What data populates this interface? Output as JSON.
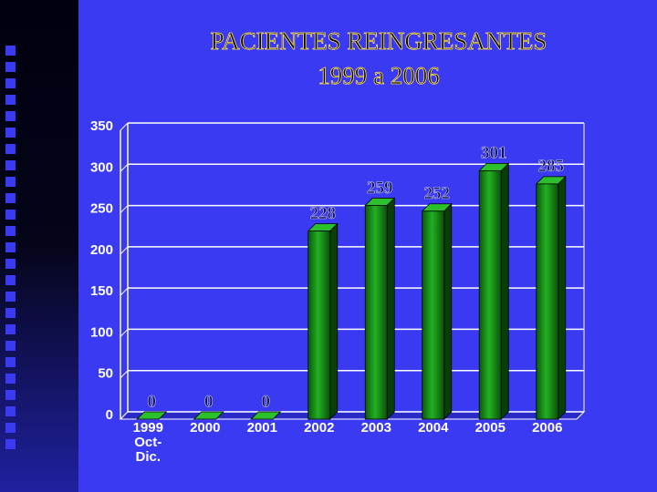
{
  "chart_data": {
    "type": "bar",
    "title": "PACIENTES REINGRESANTES",
    "subtitle": "1999 a 2006",
    "categories": [
      "1999 Oct-Dic.",
      "2000",
      "2001",
      "2002",
      "2003",
      "2004",
      "2005",
      "2006"
    ],
    "values": [
      0,
      0,
      0,
      228,
      259,
      252,
      301,
      285
    ],
    "color": "#0e8a0e",
    "ylim": [
      0,
      350
    ],
    "yticks": [
      0,
      50,
      100,
      150,
      200,
      250,
      300,
      350
    ],
    "grid": true
  }
}
